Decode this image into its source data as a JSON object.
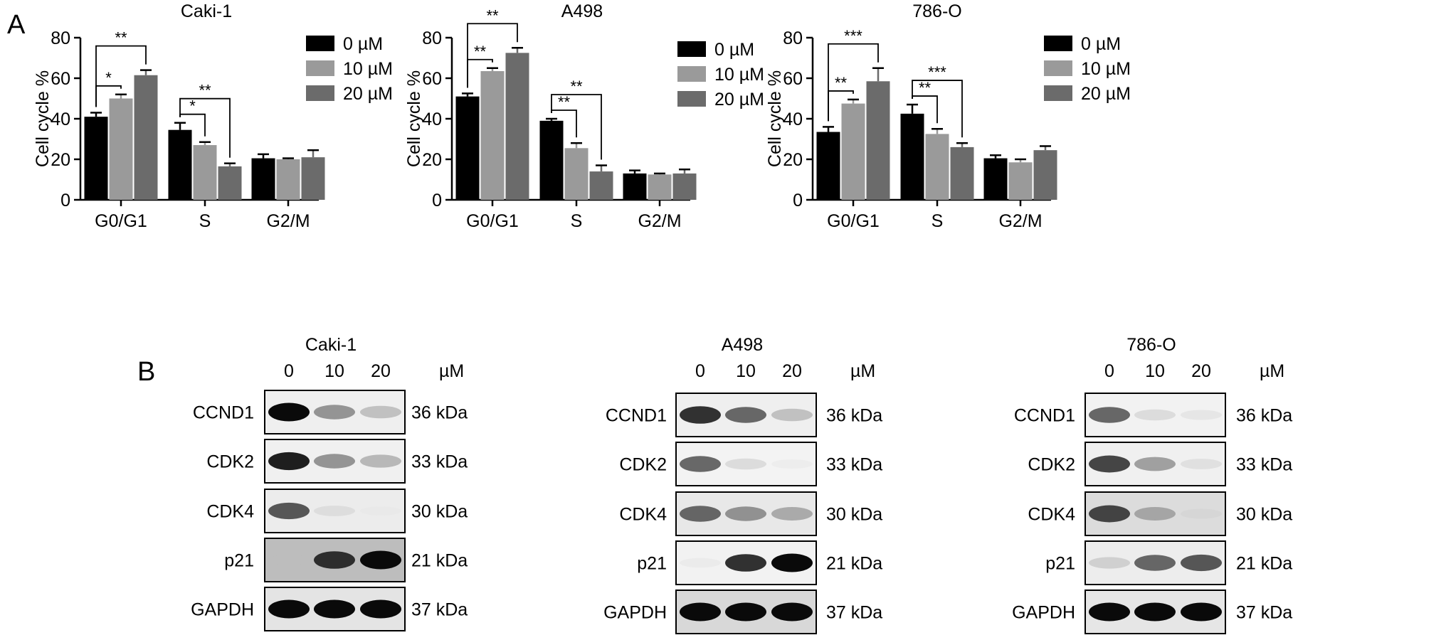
{
  "figure": {
    "panel_a_label": "A",
    "panel_b_label": "B"
  },
  "chart_data": [
    {
      "type": "bar",
      "title": "Caki-1",
      "xlabel": "",
      "ylabel": "Cell cycle %",
      "ylim": [
        0,
        80
      ],
      "yticks": [
        0,
        20,
        40,
        60,
        80
      ],
      "grid": false,
      "legend_position": "top-right",
      "categories": [
        "G0/G1",
        "S",
        "G2/M"
      ],
      "series": [
        {
          "name": "0 µM",
          "color": "#000000",
          "values": [
            41,
            34.5,
            20.5
          ],
          "errors": [
            2,
            3.5,
            2
          ]
        },
        {
          "name": "10 µM",
          "color": "#9a9a9a",
          "values": [
            50,
            27,
            20
          ],
          "errors": [
            2,
            1.5,
            0.5
          ]
        },
        {
          "name": "20 µM",
          "color": "#6b6b6b",
          "values": [
            61.5,
            16.5,
            21
          ],
          "errors": [
            2.5,
            1.5,
            3.5
          ]
        }
      ],
      "significance": [
        {
          "category": 0,
          "from_series": 0,
          "to_series": 1,
          "label": "*"
        },
        {
          "category": 0,
          "from_series": 0,
          "to_series": 2,
          "label": "**"
        },
        {
          "category": 1,
          "from_series": 0,
          "to_series": 1,
          "label": "*"
        },
        {
          "category": 1,
          "from_series": 0,
          "to_series": 2,
          "label": "**"
        }
      ]
    },
    {
      "type": "bar",
      "title": "A498",
      "xlabel": "",
      "ylabel": "Cell cycle %",
      "ylim": [
        0,
        80
      ],
      "yticks": [
        0,
        20,
        40,
        60,
        80
      ],
      "grid": false,
      "legend_position": "top-right",
      "categories": [
        "G0/G1",
        "S",
        "G2/M"
      ],
      "series": [
        {
          "name": "0 µM",
          "color": "#000000",
          "values": [
            51,
            39,
            13
          ],
          "errors": [
            1.5,
            1,
            1.5
          ]
        },
        {
          "name": "10 µM",
          "color": "#9a9a9a",
          "values": [
            63.5,
            25.5,
            12.5
          ],
          "errors": [
            1.5,
            2.5,
            0.5
          ]
        },
        {
          "name": "20 µM",
          "color": "#6b6b6b",
          "values": [
            72.5,
            14,
            13
          ],
          "errors": [
            2.5,
            3,
            2
          ]
        }
      ],
      "significance": [
        {
          "category": 0,
          "from_series": 0,
          "to_series": 1,
          "label": "**"
        },
        {
          "category": 0,
          "from_series": 0,
          "to_series": 2,
          "label": "**"
        },
        {
          "category": 1,
          "from_series": 0,
          "to_series": 1,
          "label": "**"
        },
        {
          "category": 1,
          "from_series": 0,
          "to_series": 2,
          "label": "**"
        }
      ]
    },
    {
      "type": "bar",
      "title": "786-O",
      "xlabel": "",
      "ylabel": "Cell cycle %",
      "ylim": [
        0,
        80
      ],
      "yticks": [
        0,
        20,
        40,
        60,
        80
      ],
      "grid": false,
      "legend_position": "top-right",
      "categories": [
        "G0/G1",
        "S",
        "G2/M"
      ],
      "series": [
        {
          "name": "0 µM",
          "color": "#000000",
          "values": [
            33.5,
            42.5,
            20.5
          ],
          "errors": [
            2.5,
            4.5,
            1.5
          ]
        },
        {
          "name": "10 µM",
          "color": "#9a9a9a",
          "values": [
            47.5,
            32.5,
            18.5
          ],
          "errors": [
            2,
            2.5,
            1.5
          ]
        },
        {
          "name": "20 µM",
          "color": "#6b6b6b",
          "values": [
            58.5,
            26,
            24.5
          ],
          "errors": [
            6.5,
            2,
            2
          ]
        }
      ],
      "significance": [
        {
          "category": 0,
          "from_series": 0,
          "to_series": 1,
          "label": "**"
        },
        {
          "category": 0,
          "from_series": 0,
          "to_series": 2,
          "label": "***"
        },
        {
          "category": 1,
          "from_series": 0,
          "to_series": 1,
          "label": "**"
        },
        {
          "category": 1,
          "from_series": 0,
          "to_series": 2,
          "label": "***"
        }
      ]
    }
  ],
  "blots": [
    {
      "title": "Caki-1",
      "doses": [
        "0",
        "10",
        "20"
      ],
      "unit": "µM",
      "rows": [
        {
          "protein": "CCND1",
          "kda": "36 kDa",
          "band_intensity": [
            1.0,
            0.6,
            0.4
          ],
          "background": "#efefef"
        },
        {
          "protein": "CDK2",
          "kda": "33 kDa",
          "band_intensity": [
            0.95,
            0.6,
            0.45
          ],
          "background": "#f0f0f0"
        },
        {
          "protein": "CDK4",
          "kda": "30 kDa",
          "band_intensity": [
            0.8,
            0.2,
            0.05
          ],
          "background": "#ececec"
        },
        {
          "protein": "p21",
          "kda": "21 kDa",
          "band_intensity": [
            0.2,
            0.9,
            1.0
          ],
          "background": "#bdbdbd"
        },
        {
          "protein": "GAPDH",
          "kda": "37 kDa",
          "band_intensity": [
            1.0,
            1.0,
            1.0
          ],
          "background": "#e4e4e4"
        }
      ]
    },
    {
      "title": "A498",
      "doses": [
        "0",
        "10",
        "20"
      ],
      "unit": "µM",
      "rows": [
        {
          "protein": "CCND1",
          "kda": "36 kDa",
          "band_intensity": [
            0.9,
            0.75,
            0.4
          ],
          "background": "#efefef"
        },
        {
          "protein": "CDK2",
          "kda": "33 kDa",
          "band_intensity": [
            0.75,
            0.25,
            0.08
          ],
          "background": "#f3f3f3"
        },
        {
          "protein": "CDK4",
          "kda": "30 kDa",
          "band_intensity": [
            0.75,
            0.6,
            0.5
          ],
          "background": "#e8e8e8"
        },
        {
          "protein": "p21",
          "kda": "21 kDa",
          "band_intensity": [
            0.1,
            0.9,
            1.0
          ],
          "background": "#f2f2f2"
        },
        {
          "protein": "GAPDH",
          "kda": "37 kDa",
          "band_intensity": [
            1.0,
            1.0,
            1.0
          ],
          "background": "#d8d8d8"
        }
      ]
    },
    {
      "title": "786-O",
      "doses": [
        "0",
        "10",
        "20"
      ],
      "unit": "µM",
      "rows": [
        {
          "protein": "CCND1",
          "kda": "36 kDa",
          "band_intensity": [
            0.75,
            0.25,
            0.15
          ],
          "background": "#f2f2f2"
        },
        {
          "protein": "CDK2",
          "kda": "33 kDa",
          "band_intensity": [
            0.85,
            0.55,
            0.2
          ],
          "background": "#f0f0f0"
        },
        {
          "protein": "CDK4",
          "kda": "30 kDa",
          "band_intensity": [
            0.85,
            0.5,
            0.15
          ],
          "background": "#dcdcdc"
        },
        {
          "protein": "p21",
          "kda": "21 kDa",
          "band_intensity": [
            0.3,
            0.75,
            0.8
          ],
          "background": "#ededed"
        },
        {
          "protein": "GAPDH",
          "kda": "37 kDa",
          "band_intensity": [
            1.0,
            1.0,
            1.0
          ],
          "background": "#e6e6e6"
        }
      ]
    }
  ]
}
